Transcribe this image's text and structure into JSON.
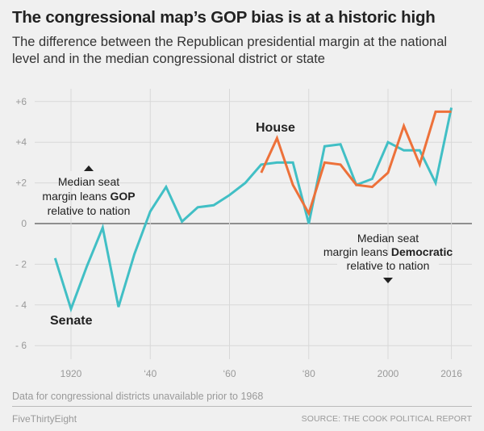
{
  "header": {
    "title": "The congressional map’s GOP bias is at a historic high",
    "subtitle": "The difference between the Republican presidential margin at the national level and in the median congressional district or state"
  },
  "footer": {
    "note": "Data for congressional districts unavailable prior to 1968",
    "brand": "FiveThirtyEight",
    "source": "SOURCE: THE COOK POLITICAL REPORT"
  },
  "chart_data": {
    "type": "line",
    "title": "The congressional map’s GOP bias is at a historic high",
    "xlabel": "",
    "ylabel": "",
    "xlim": [
      1910,
      2022
    ],
    "ylim": [
      -6.5,
      6.5
    ],
    "grid": true,
    "x_ticks": [
      1920,
      1940,
      1960,
      1980,
      2000,
      2016
    ],
    "x_tick_labels": [
      "1920",
      "‘40",
      "‘60",
      "‘80",
      "2000",
      "2016"
    ],
    "y_ticks": [
      6,
      4,
      2,
      0,
      -2,
      -4,
      -6
    ],
    "y_tick_labels": [
      "+6",
      "+4",
      "+2",
      "0",
      "- 2",
      "- 4",
      "- 6"
    ],
    "series": [
      {
        "name": "Senate",
        "color": "#41bfc5",
        "x": [
          1916,
          1920,
          1924,
          1928,
          1932,
          1936,
          1940,
          1944,
          1948,
          1952,
          1956,
          1960,
          1964,
          1968,
          1972,
          1976,
          1980,
          1984,
          1988,
          1992,
          1996,
          2000,
          2004,
          2008,
          2012,
          2016
        ],
        "values": [
          -1.7,
          -4.2,
          -2.1,
          -0.2,
          -4.1,
          -1.5,
          0.6,
          1.8,
          0.1,
          0.8,
          0.9,
          1.4,
          2.0,
          2.9,
          3.0,
          3.0,
          0.0,
          3.8,
          3.9,
          1.9,
          2.2,
          4.0,
          3.6,
          3.6,
          2.0,
          5.7
        ]
      },
      {
        "name": "House",
        "color": "#ed713a",
        "x": [
          1968,
          1972,
          1976,
          1980,
          1984,
          1988,
          1992,
          1996,
          2000,
          2004,
          2008,
          2012,
          2016
        ],
        "values": [
          2.5,
          4.2,
          1.9,
          0.5,
          3.0,
          2.9,
          1.9,
          1.8,
          2.5,
          4.8,
          2.9,
          5.5,
          5.5
        ]
      }
    ],
    "annotations": {
      "gop": {
        "lines": [
          "Median seat",
          "margin leans ",
          "relative to nation"
        ],
        "bold": "GOP",
        "arrow": "up"
      },
      "dem": {
        "lines": [
          "Median seat",
          "margin leans ",
          "relative to nation"
        ],
        "bold": "Democratic",
        "arrow": "down"
      }
    },
    "series_labels": {
      "senate": "Senate",
      "house": "House"
    }
  }
}
